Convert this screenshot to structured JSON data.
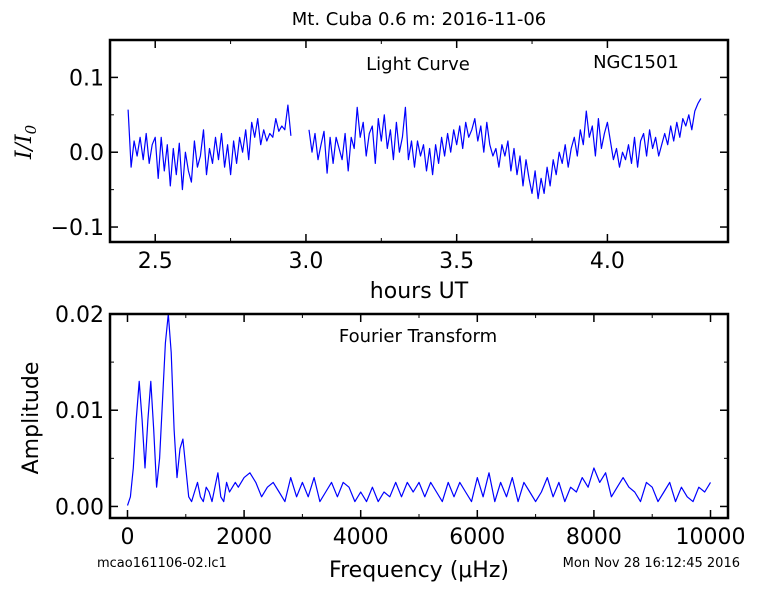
{
  "figure": {
    "title": "Mt. Cuba 0.6 m:  2016-11-06",
    "footer_left": "mcao161106-02.lc1",
    "footer_right": "Mon Nov 28 16:12:45 2016",
    "line_color": "#0000ff",
    "axis_color": "#000000"
  },
  "chart_data": [
    {
      "type": "line",
      "annotation_center": "Light Curve",
      "annotation_right": "NGC1501",
      "xlabel": "hours UT",
      "ylabel": "I/I0",
      "xlim": [
        2.35,
        4.4
      ],
      "ylim": [
        -0.12,
        0.15
      ],
      "xticks": [
        2.5,
        3.0,
        3.5,
        4.0
      ],
      "xtick_labels": [
        "2.5",
        "3.0",
        "3.5",
        "4.0"
      ],
      "yticks": [
        -0.1,
        0.0,
        0.1
      ],
      "ytick_labels": [
        "−0.1",
        "0.0",
        "0.1"
      ],
      "grid": false,
      "segments": [
        {
          "x": [
            2.41,
            2.42,
            2.43,
            2.44,
            2.45,
            2.46,
            2.47,
            2.48,
            2.49,
            2.5,
            2.51,
            2.52,
            2.53,
            2.54,
            2.55,
            2.56,
            2.57,
            2.58,
            2.59,
            2.6,
            2.61,
            2.62,
            2.63,
            2.64,
            2.65,
            2.66,
            2.67,
            2.68,
            2.69,
            2.7,
            2.71,
            2.72,
            2.73,
            2.74,
            2.75,
            2.76,
            2.77,
            2.78,
            2.79,
            2.8,
            2.81,
            2.82,
            2.83,
            2.84,
            2.85,
            2.86,
            2.87,
            2.88,
            2.89,
            2.9,
            2.91,
            2.92,
            2.93,
            2.94,
            2.95
          ],
          "y": [
            0.057,
            -0.02,
            0.015,
            -0.005,
            0.02,
            -0.01,
            0.025,
            -0.015,
            0.01,
            0.02,
            -0.035,
            0.02,
            -0.025,
            0.01,
            -0.045,
            0.005,
            -0.03,
            0.012,
            -0.05,
            0.0,
            -0.025,
            -0.04,
            0.015,
            -0.02,
            -0.005,
            0.03,
            -0.03,
            0.005,
            -0.015,
            0.02,
            -0.01,
            0.025,
            -0.02,
            0.01,
            -0.03,
            0.015,
            -0.015,
            0.02,
            0.0,
            0.03,
            -0.01,
            0.04,
            0.02,
            0.045,
            0.01,
            0.03,
            0.015,
            0.025,
            0.02,
            0.045,
            0.028,
            0.035,
            0.03,
            0.063,
            0.022
          ]
        },
        {
          "x": [
            3.01,
            3.02,
            3.03,
            3.04,
            3.05,
            3.06,
            3.07,
            3.08,
            3.09,
            3.1,
            3.11,
            3.12,
            3.13,
            3.14,
            3.15,
            3.16,
            3.17,
            3.18,
            3.19,
            3.2,
            3.21,
            3.22,
            3.23,
            3.24,
            3.25,
            3.26,
            3.27,
            3.28,
            3.29,
            3.3,
            3.31,
            3.32,
            3.33,
            3.34,
            3.35,
            3.36,
            3.37,
            3.38,
            3.39,
            3.4,
            3.41,
            3.42,
            3.43,
            3.44,
            3.45,
            3.46,
            3.47,
            3.48,
            3.49,
            3.5,
            3.51,
            3.52,
            3.53,
            3.54,
            3.55,
            3.56,
            3.57,
            3.58,
            3.59,
            3.6,
            3.61,
            3.62,
            3.63,
            3.64,
            3.65,
            3.66,
            3.67,
            3.68,
            3.69,
            3.7,
            3.71,
            3.72,
            3.73,
            3.74,
            3.75,
            3.76,
            3.77,
            3.78,
            3.79,
            3.8,
            3.81,
            3.82,
            3.83,
            3.84,
            3.85,
            3.86,
            3.87,
            3.88,
            3.89,
            3.9,
            3.91,
            3.92,
            3.93,
            3.94,
            3.95,
            3.96,
            3.97,
            3.98,
            3.99,
            4.0,
            4.01,
            4.02,
            4.03,
            4.04,
            4.05,
            4.06,
            4.07,
            4.08,
            4.09,
            4.1,
            4.11,
            4.12,
            4.13,
            4.14,
            4.15,
            4.16,
            4.17,
            4.18,
            4.19,
            4.2,
            4.21,
            4.22,
            4.23,
            4.24,
            4.25,
            4.26,
            4.27,
            4.28,
            4.29,
            4.3,
            4.31
          ],
          "y": [
            0.03,
            0.0,
            0.025,
            -0.01,
            0.01,
            0.028,
            -0.028,
            0.02,
            -0.015,
            0.02,
            0.005,
            -0.01,
            0.025,
            -0.025,
            0.02,
            0.005,
            0.06,
            0.02,
            0.04,
            -0.005,
            0.025,
            0.035,
            -0.015,
            0.045,
            0.015,
            0.05,
            0.005,
            0.03,
            -0.01,
            0.04,
            0.0,
            0.02,
            0.06,
            -0.01,
            0.015,
            -0.02,
            0.015,
            -0.005,
            0.01,
            -0.025,
            0.005,
            -0.03,
            0.01,
            -0.015,
            0.02,
            -0.005,
            0.025,
            0.0,
            0.03,
            0.01,
            0.035,
            0.005,
            0.04,
            0.02,
            0.03,
            0.045,
            0.015,
            0.035,
            0.0,
            0.04,
            0.01,
            -0.005,
            0.005,
            -0.02,
            0.01,
            -0.005,
            0.015,
            -0.025,
            0.005,
            -0.03,
            -0.005,
            -0.045,
            -0.01,
            -0.035,
            -0.055,
            -0.025,
            -0.062,
            -0.035,
            -0.055,
            -0.02,
            -0.045,
            -0.01,
            -0.03,
            0.0,
            -0.015,
            0.01,
            -0.02,
            0.005,
            0.02,
            -0.005,
            0.03,
            0.01,
            0.055,
            0.02,
            0.035,
            -0.005,
            0.045,
            0.005,
            0.025,
            0.04,
            0.015,
            -0.01,
            0.005,
            -0.02,
            0.0,
            -0.01,
            0.01,
            -0.015,
            0.02,
            -0.02,
            0.015,
            0.025,
            -0.005,
            0.03,
            0.005,
            0.02,
            -0.005,
            0.01,
            0.025,
            0.01,
            0.035,
            0.015,
            0.04,
            0.02,
            0.045,
            0.035,
            0.05,
            0.03,
            0.055,
            0.065,
            0.072
          ]
        }
      ]
    },
    {
      "type": "line",
      "annotation_center": "Fourier Transform",
      "xlabel": "Frequency (μHz)",
      "ylabel": "Amplitude",
      "xlim": [
        -300,
        10300
      ],
      "ylim": [
        -0.0012,
        0.02
      ],
      "xticks": [
        0,
        2000,
        4000,
        6000,
        8000,
        10000
      ],
      "xtick_labels": [
        "0",
        "2000",
        "4000",
        "6000",
        "8000",
        "10000"
      ],
      "yticks": [
        0.0,
        0.01,
        0.02
      ],
      "ytick_labels": [
        "0.00",
        "0.01",
        "0.02"
      ],
      "grid": false,
      "series": [
        {
          "x": [
            0,
            50,
            100,
            150,
            200,
            250,
            300,
            350,
            400,
            450,
            500,
            550,
            600,
            650,
            700,
            750,
            800,
            850,
            900,
            950,
            1000,
            1050,
            1100,
            1150,
            1200,
            1250,
            1300,
            1350,
            1400,
            1450,
            1500,
            1550,
            1600,
            1650,
            1700,
            1750,
            1800,
            1850,
            1900,
            2000,
            2100,
            2200,
            2300,
            2400,
            2500,
            2600,
            2700,
            2800,
            2900,
            3000,
            3100,
            3200,
            3300,
            3400,
            3500,
            3600,
            3700,
            3800,
            3900,
            4000,
            4100,
            4200,
            4300,
            4400,
            4500,
            4600,
            4700,
            4800,
            4900,
            5000,
            5100,
            5200,
            5300,
            5400,
            5500,
            5600,
            5700,
            5800,
            5900,
            6000,
            6100,
            6200,
            6300,
            6400,
            6500,
            6600,
            6700,
            6800,
            6900,
            7000,
            7100,
            7200,
            7300,
            7400,
            7500,
            7600,
            7700,
            7800,
            7900,
            8000,
            8100,
            8200,
            8300,
            8400,
            8500,
            8600,
            8700,
            8800,
            8900,
            9000,
            9100,
            9200,
            9300,
            9400,
            9500,
            9600,
            9700,
            9800,
            9900,
            10000
          ],
          "y": [
            0.0001,
            0.001,
            0.004,
            0.009,
            0.013,
            0.009,
            0.004,
            0.009,
            0.013,
            0.008,
            0.002,
            0.005,
            0.011,
            0.017,
            0.02,
            0.016,
            0.008,
            0.003,
            0.006,
            0.007,
            0.004,
            0.001,
            0.0005,
            0.0015,
            0.0025,
            0.001,
            0.0005,
            0.002,
            0.0015,
            0.0005,
            0.002,
            0.0035,
            0.001,
            0.0005,
            0.0025,
            0.0015,
            0.002,
            0.0025,
            0.002,
            0.003,
            0.0035,
            0.0025,
            0.001,
            0.002,
            0.0025,
            0.0015,
            0.0005,
            0.003,
            0.001,
            0.0025,
            0.001,
            0.003,
            0.0005,
            0.0015,
            0.0025,
            0.001,
            0.0025,
            0.002,
            0.0005,
            0.0015,
            0.0005,
            0.002,
            0.0005,
            0.0015,
            0.001,
            0.0025,
            0.001,
            0.0025,
            0.0015,
            0.0025,
            0.001,
            0.0025,
            0.0015,
            0.0005,
            0.0025,
            0.001,
            0.0025,
            0.0015,
            0.0005,
            0.003,
            0.001,
            0.0035,
            0.0005,
            0.0025,
            0.001,
            0.003,
            0.0005,
            0.0025,
            0.0015,
            0.0005,
            0.0015,
            0.003,
            0.001,
            0.0025,
            0.0005,
            0.002,
            0.0015,
            0.003,
            0.002,
            0.004,
            0.0025,
            0.0035,
            0.001,
            0.002,
            0.003,
            0.002,
            0.0015,
            0.0005,
            0.0025,
            0.002,
            0.0005,
            0.0015,
            0.0025,
            0.0005,
            0.002,
            0.001,
            0.0005,
            0.002,
            0.0015,
            0.0025
          ]
        }
      ]
    }
  ]
}
